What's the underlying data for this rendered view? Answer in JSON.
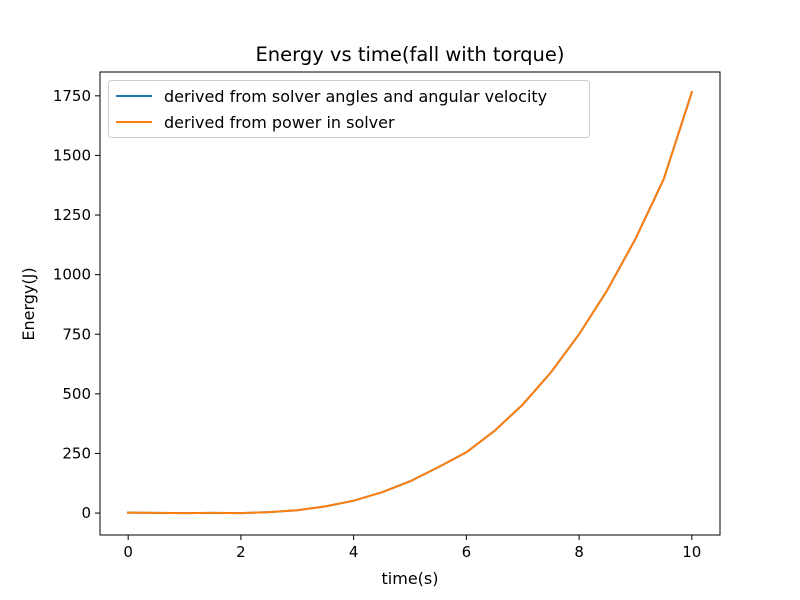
{
  "chart_data": {
    "type": "line",
    "title": "Energy vs time(fall with torque)",
    "xlabel": "time(s)",
    "ylabel": "Energy(J)",
    "xlim": [
      -0.5,
      10.5
    ],
    "ylim": [
      -92,
      1850
    ],
    "xticks": [
      0,
      2,
      4,
      6,
      8,
      10
    ],
    "yticks": [
      0,
      250,
      500,
      750,
      1000,
      1250,
      1500,
      1750
    ],
    "grid": false,
    "legend_position": "top-left",
    "x": [
      0,
      0.5,
      1,
      1.5,
      2,
      2.5,
      3,
      3.5,
      4,
      4.5,
      5,
      5.5,
      6,
      6.5,
      7,
      7.5,
      8,
      8.5,
      9,
      9.5,
      10
    ],
    "series": [
      {
        "name": "derived from solver angles and angular velocity",
        "color": "#1f77b4",
        "values": [
          2,
          1,
          0,
          1,
          0,
          4,
          12,
          28,
          52,
          87,
          133,
          192,
          255,
          345,
          455,
          590,
          750,
          935,
          1150,
          1400,
          1765
        ]
      },
      {
        "name": "derived from power in solver",
        "color": "#ff7f0e",
        "values": [
          2,
          1,
          0,
          1,
          0,
          4,
          12,
          28,
          52,
          87,
          133,
          192,
          255,
          345,
          455,
          590,
          750,
          935,
          1150,
          1400,
          1765
        ]
      }
    ]
  }
}
